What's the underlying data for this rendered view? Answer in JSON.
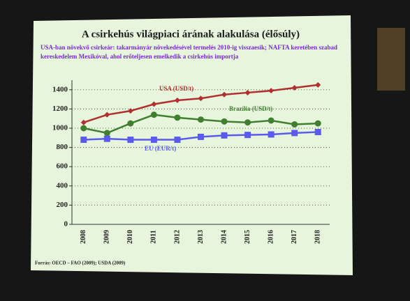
{
  "chart_data": {
    "type": "line",
    "title": "A csirkehús világpiaci árának alakulása (élősúly)",
    "subtitle": "USA-ban növekvő csirkeár: takarmányár növekedésével termelés 2010-ig visszaesik; NAFTA keretében szabad kereskedelem Mexikóval, ahol erőteljesen emelkedik a csirkehús importja",
    "source": "Forrás: OECD – FAO (2009); USDA (2009)",
    "categories": [
      "2008",
      "2009",
      "2010",
      "2011",
      "2012",
      "2013",
      "2014",
      "2015",
      "2016",
      "2017",
      "2018"
    ],
    "series": [
      {
        "name": "USA (USD/t)",
        "color": "#b03030",
        "marker": "diamond",
        "values": [
          1060,
          1140,
          1180,
          1250,
          1290,
          1310,
          1350,
          1370,
          1390,
          1420,
          1450
        ]
      },
      {
        "name": "Brazília (USD/t)",
        "color": "#3f7f2f",
        "marker": "circle",
        "values": [
          1000,
          950,
          1050,
          1140,
          1110,
          1090,
          1070,
          1060,
          1080,
          1040,
          1050
        ]
      },
      {
        "name": "EU (EUR/t)",
        "color": "#5a5aef",
        "marker": "square",
        "values": [
          880,
          890,
          880,
          880,
          880,
          910,
          925,
          930,
          935,
          950,
          960
        ]
      }
    ],
    "ylim": [
      0,
      1500
    ],
    "yticks": [
      0,
      200,
      400,
      600,
      800,
      1000,
      1200,
      1400
    ],
    "grid": true
  }
}
